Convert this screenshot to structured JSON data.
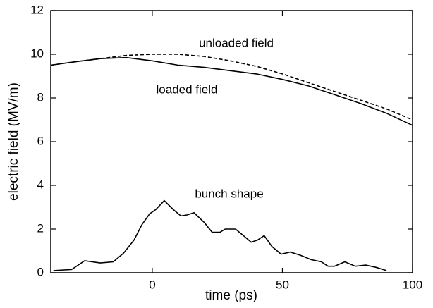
{
  "chart_data": {
    "type": "line",
    "x_label": "time (ps)",
    "y_label": "electric field (MV/m)",
    "xlim": [
      -39,
      100
    ],
    "xticks": [
      0,
      50,
      100
    ],
    "ylim": [
      0,
      12
    ],
    "yticks": [
      0,
      2,
      4,
      6,
      8,
      10,
      12
    ],
    "series": [
      {
        "name": "unloaded field",
        "color": "#000000",
        "dash": true,
        "x": [
          -39,
          -30,
          -20,
          -10,
          0,
          10,
          20,
          30,
          40,
          50,
          60,
          70,
          80,
          90,
          100
        ],
        "values": [
          9.5,
          9.65,
          9.8,
          9.95,
          10.0,
          10.0,
          9.9,
          9.7,
          9.45,
          9.1,
          8.7,
          8.3,
          7.9,
          7.5,
          7.0
        ]
      },
      {
        "name": "loaded field",
        "color": "#000000",
        "dash": false,
        "x": [
          -39,
          -30,
          -20,
          -10,
          0,
          10,
          20,
          30,
          40,
          50,
          60,
          70,
          80,
          90,
          100
        ],
        "values": [
          9.5,
          9.65,
          9.8,
          9.85,
          9.7,
          9.5,
          9.4,
          9.25,
          9.1,
          8.85,
          8.55,
          8.15,
          7.75,
          7.3,
          6.75
        ]
      },
      {
        "name": "bunch shape",
        "color": "#000000",
        "dash": false,
        "x": [
          -38,
          -31,
          -26,
          -20,
          -15,
          -11,
          -7,
          -4,
          -1,
          1.4,
          4.6,
          8,
          11,
          13.5,
          16,
          20,
          23,
          26,
          28,
          32,
          35,
          38,
          40.5,
          43,
          46,
          49.5,
          53,
          57,
          61,
          65,
          67.5,
          70,
          74,
          78,
          82,
          86,
          90
        ],
        "values": [
          0.1,
          0.15,
          0.55,
          0.45,
          0.5,
          0.9,
          1.5,
          2.2,
          2.7,
          2.9,
          3.3,
          2.9,
          2.6,
          2.65,
          2.75,
          2.3,
          1.85,
          1.85,
          2.0,
          2.0,
          1.7,
          1.4,
          1.5,
          1.7,
          1.2,
          0.85,
          0.95,
          0.8,
          0.6,
          0.5,
          0.3,
          0.3,
          0.5,
          0.3,
          0.35,
          0.25,
          0.1
        ]
      }
    ]
  }
}
